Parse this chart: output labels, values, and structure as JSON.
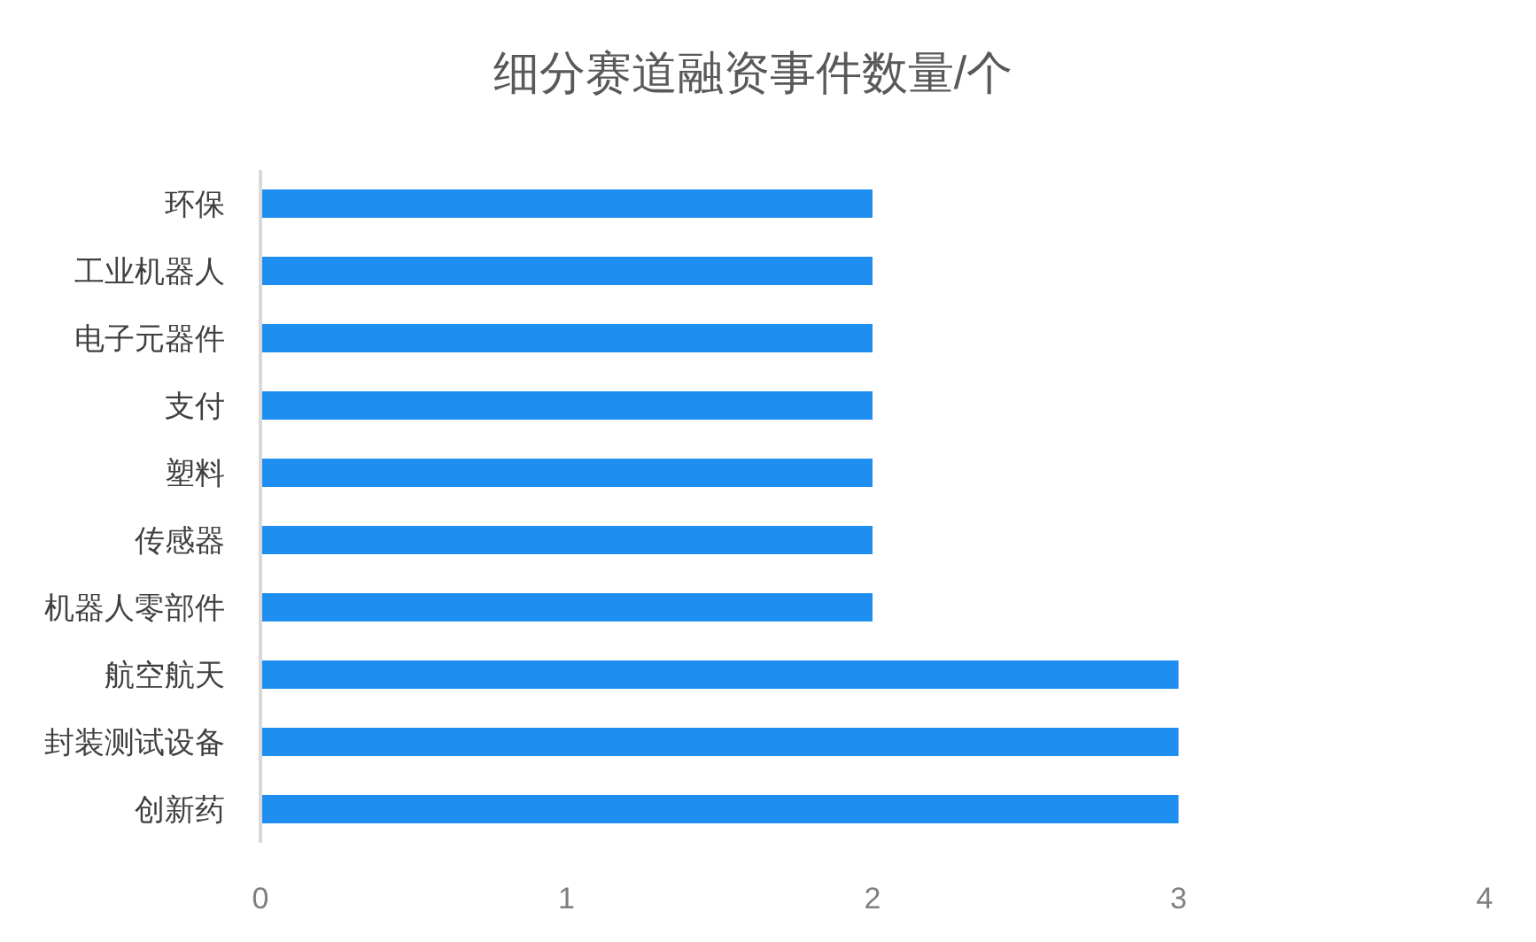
{
  "chart_data": {
    "type": "bar",
    "orientation": "horizontal",
    "title": "细分赛道融资事件数量/个",
    "categories": [
      "环保",
      "工业机器人",
      "电子元器件",
      "支付",
      "塑料",
      "传感器",
      "机器人零部件",
      "航空航天",
      "封装测试设备",
      "创新药"
    ],
    "values": [
      2,
      2,
      2,
      2,
      2,
      2,
      2,
      3,
      3,
      3
    ],
    "color": "#1f8ef1",
    "xlim": [
      0,
      4
    ],
    "xticks": [
      0,
      1,
      2,
      3,
      4
    ]
  }
}
